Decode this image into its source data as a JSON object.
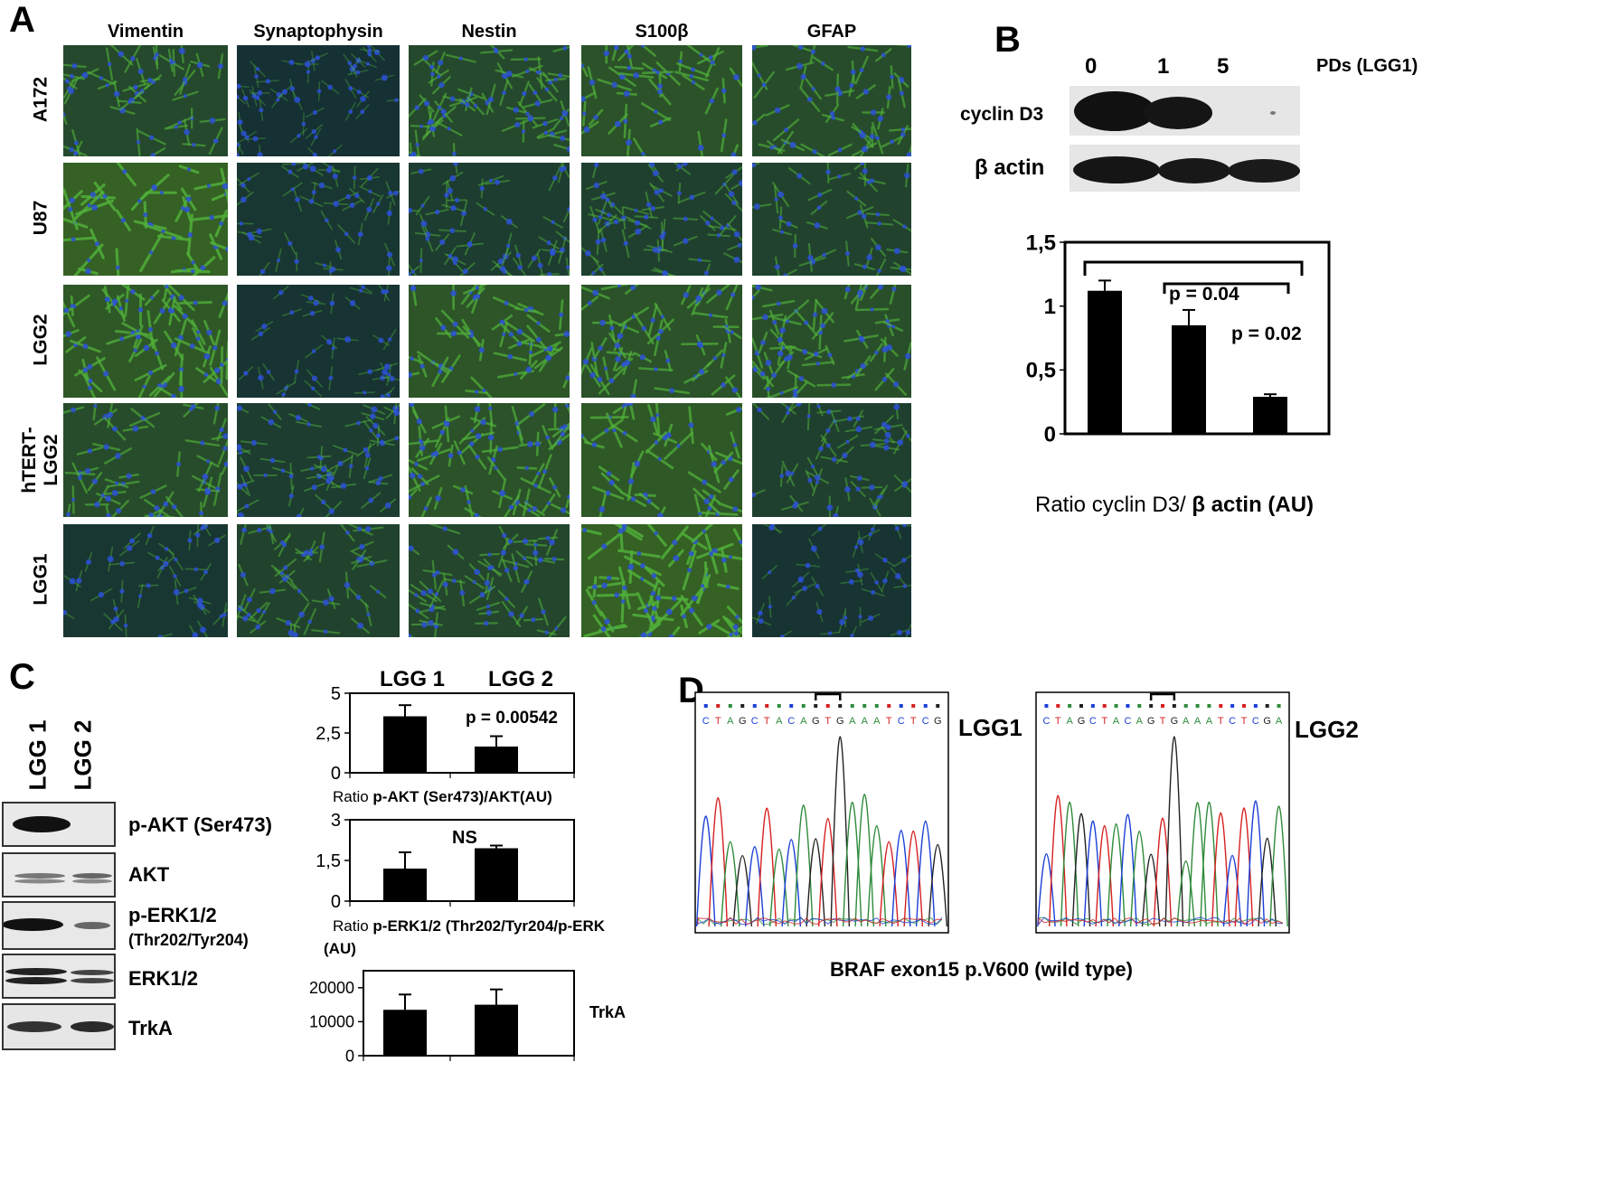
{
  "panelA": {
    "letter": "A",
    "columns": [
      "Vimentin",
      "Synaptophysin",
      "Nestin",
      "S100β",
      "GFAP"
    ],
    "rows": [
      "A172",
      "U87",
      "LGG2",
      "hTERT-\nLGG2",
      "LGG1"
    ],
    "rows_display": [
      "A172",
      "U87",
      "LGG2",
      "hTERT-",
      "LGG1"
    ],
    "rows_second_line": [
      "",
      "",
      "",
      "LGG2",
      ""
    ]
  },
  "panelB": {
    "letter": "B",
    "lane_labels": [
      "0",
      "1",
      "5"
    ],
    "lane_axis_label": "PDs (LGG1)",
    "blots": [
      "cyclin D3",
      "β actin"
    ],
    "caption_plain": "Ratio cyclin D3/ ",
    "caption_bold": "β actin (AU)",
    "pvalues": [
      "p = 0.04",
      "p = 0.02"
    ]
  },
  "panelC": {
    "letter": "C",
    "lanes": [
      "LGG 1",
      "LGG 2"
    ],
    "blots": [
      "p-AKT (Ser473)",
      "AKT",
      "p-ERK1/2",
      "(Thr202/Tyr204)",
      "ERK1/2",
      "TrkA"
    ],
    "chart_headers": [
      "LGG 1",
      "LGG 2"
    ],
    "caption1_plain": "Ratio ",
    "caption1_bold": "p-AKT (Ser473)/AKT(AU)",
    "caption2_plain": "Ratio ",
    "caption2_bold": "p-ERK1/2 (Thr202/Tyr204/p-ERK",
    "caption2_line2": "(AU)",
    "trka_label": "TrkA",
    "pvalue": "p = 0.00542",
    "ns": "NS"
  },
  "panelD": {
    "letter": "D",
    "sample1": "LGG1",
    "sample2": "LGG2",
    "seq1": "CTAGCTACAGTGAAATCTCG",
    "seq2": "CTAGCTACAGTGAAATCTCGA",
    "caption": "BRAF exon15  p.V600 (wild type)"
  },
  "colors": {
    "fluor_green": "#4fae3a",
    "nuclei_blue": "#2b4fd8",
    "A": "#2e8b3a",
    "C": "#1a3fd6",
    "G": "#222222",
    "T": "#d62020"
  },
  "chart_data": [
    {
      "type": "bar",
      "title": "",
      "categories": [
        "0",
        "1",
        "5"
      ],
      "values": [
        1.12,
        0.85,
        0.29
      ],
      "errors": [
        0.08,
        0.12,
        0.02
      ],
      "ylim": [
        0,
        1.5
      ],
      "yticks": [
        "0",
        "0,5",
        "1",
        "1,5"
      ],
      "ytick_values": [
        0,
        0.5,
        1,
        1.5
      ],
      "xlabel": "",
      "ylabel": ""
    },
    {
      "type": "bar",
      "title": "",
      "categories": [
        "LGG 1",
        "LGG 2"
      ],
      "values": [
        3.55,
        1.65
      ],
      "errors": [
        0.7,
        0.65
      ],
      "ylim": [
        0,
        5
      ],
      "yticks": [
        "0",
        "2,5",
        "5"
      ],
      "ytick_values": [
        0,
        2.5,
        5
      ]
    },
    {
      "type": "bar",
      "title": "",
      "categories": [
        "LGG 1",
        "LGG 2"
      ],
      "values": [
        1.2,
        1.95
      ],
      "errors": [
        0.6,
        0.1
      ],
      "ylim": [
        0,
        3
      ],
      "yticks": [
        "0",
        "1,5",
        "3"
      ],
      "ytick_values": [
        0,
        1.5,
        3
      ]
    },
    {
      "type": "bar",
      "title": "",
      "categories": [
        "LGG 1",
        "LGG 2"
      ],
      "values": [
        13500,
        15000
      ],
      "errors": [
        4500,
        4500
      ],
      "ylim": [
        0,
        25000
      ],
      "yticks": [
        "0",
        "10000",
        "20000"
      ],
      "ytick_values": [
        0,
        10000,
        20000
      ]
    }
  ]
}
